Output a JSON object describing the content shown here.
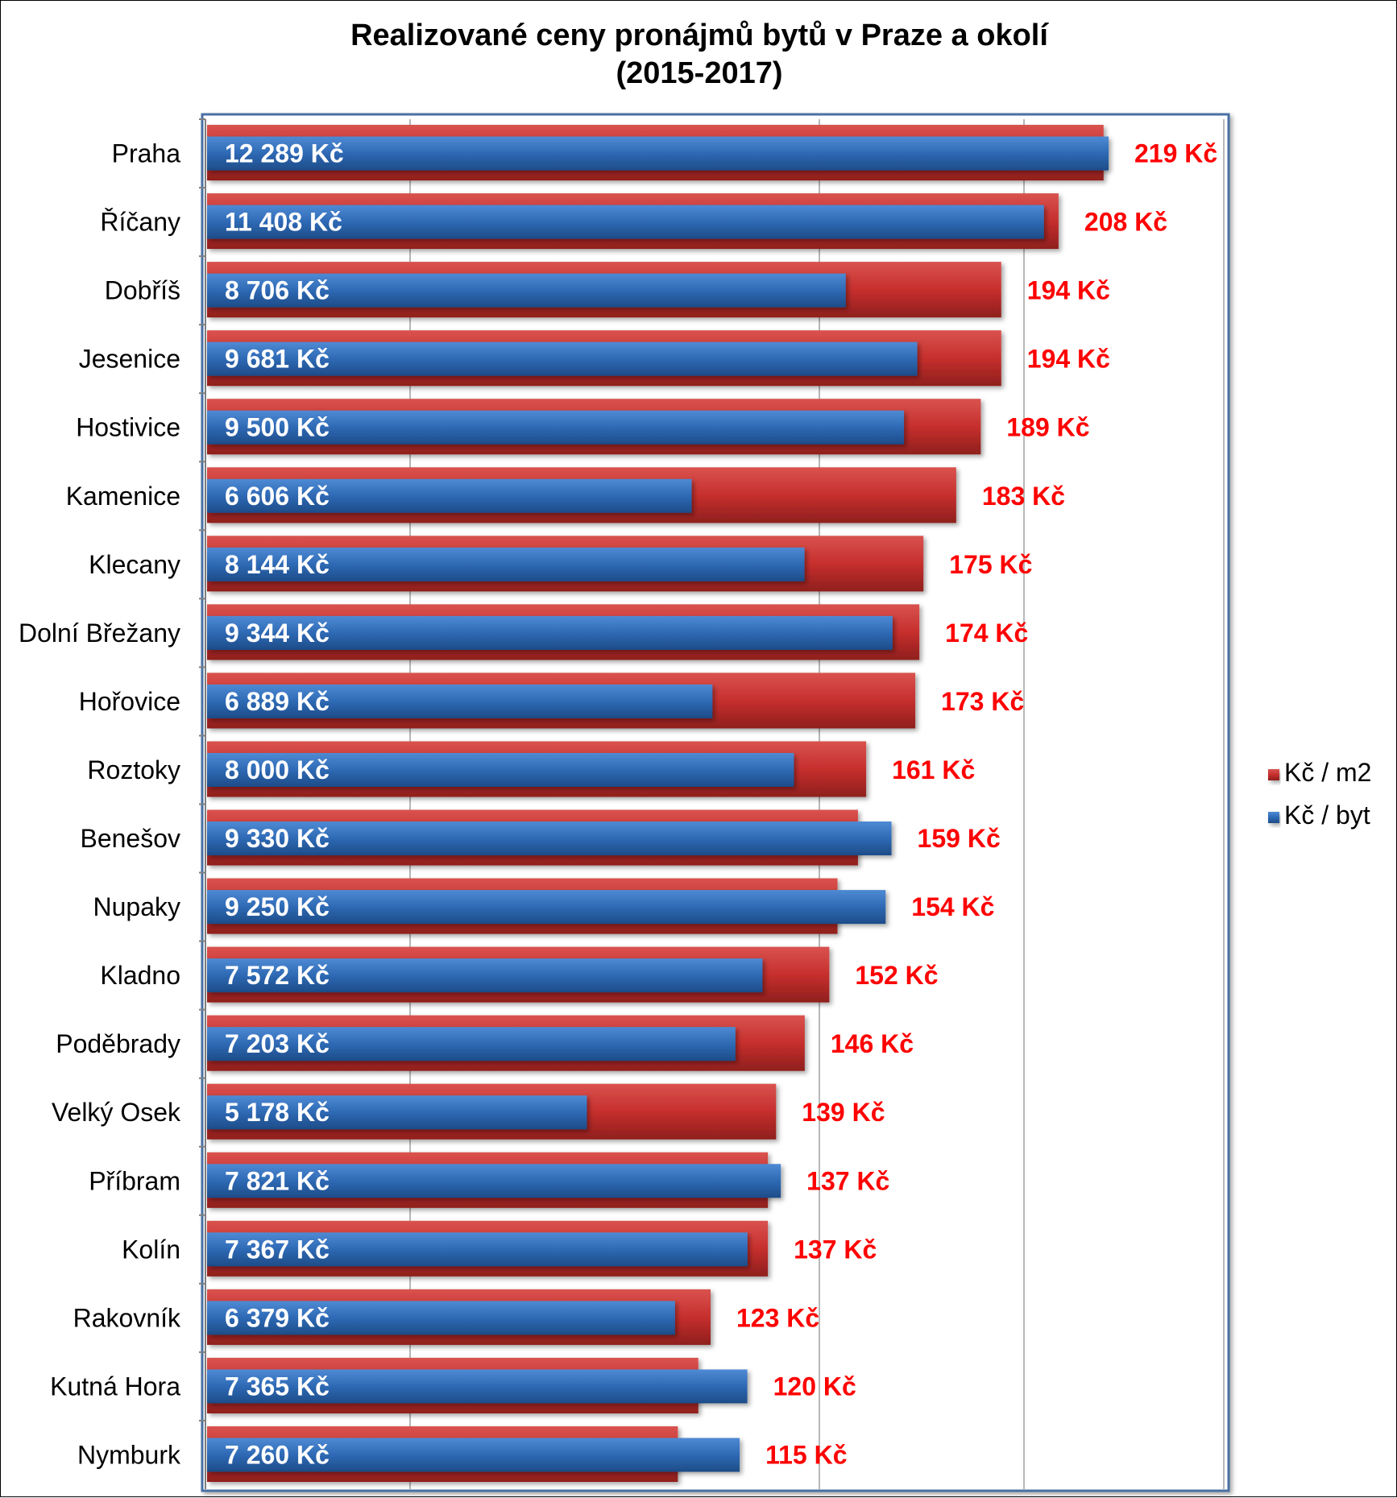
{
  "chart_data": {
    "type": "bar",
    "orientation": "horizontal",
    "title": "Realizované ceny pronájmů bytů v Praze a okolí",
    "subtitle": "(2015-2017)",
    "categories": [
      "Praha",
      "Říčany",
      "Dobříš",
      "Jesenice",
      "Hostivice",
      "Kamenice",
      "Klecany",
      "Dolní Břežany",
      "Hořovice",
      "Roztoky",
      "Benešov",
      "Nupaky",
      "Kladno",
      "Poděbrady",
      "Velký Osek",
      "Příbram",
      "Kolín",
      "Rakovník",
      "Kutná Hora",
      "Nymburk"
    ],
    "series": [
      {
        "name": "Kč / m2",
        "color": "#c0302e",
        "values": [
          219,
          208,
          194,
          194,
          189,
          183,
          175,
          174,
          173,
          161,
          159,
          154,
          152,
          146,
          139,
          137,
          137,
          123,
          120,
          115
        ],
        "labels": [
          "219 Kč",
          "208 Kč",
          "194 Kč",
          "194 Kč",
          "189 Kč",
          "183 Kč",
          "175 Kč",
          "174 Kč",
          "173 Kč",
          "161 Kč",
          "159 Kč",
          "154 Kč",
          "152 Kč",
          "146 Kč",
          "139 Kč",
          "137 Kč",
          "137 Kč",
          "123 Kč",
          "120 Kč",
          "115 Kč"
        ]
      },
      {
        "name": "Kč / byt",
        "color": "#2e69b4",
        "values": [
          12289,
          11408,
          8706,
          9681,
          9500,
          6606,
          8144,
          9344,
          6889,
          8000,
          9330,
          9250,
          7572,
          7203,
          5178,
          7821,
          7367,
          6379,
          7365,
          7260
        ],
        "labels": [
          "12 289 Kč",
          "11 408 Kč",
          "8 706 Kč",
          "9 681 Kč",
          "9 500 Kč",
          "6 606 Kč",
          "8 144 Kč",
          "9 344 Kč",
          "6 889 Kč",
          "8 000 Kč",
          "9 330 Kč",
          "9 250 Kč",
          "7 572 Kč",
          "7 203 Kč",
          "5 178 Kč",
          "7 821 Kč",
          "7 367 Kč",
          "6 379 Kč",
          "7 365 Kč",
          "7 260 Kč"
        ]
      }
    ],
    "xlim_m2": [
      0,
      250
    ],
    "xlim_byt": [
      0,
      14000
    ],
    "grid": true,
    "legend": "right"
  }
}
